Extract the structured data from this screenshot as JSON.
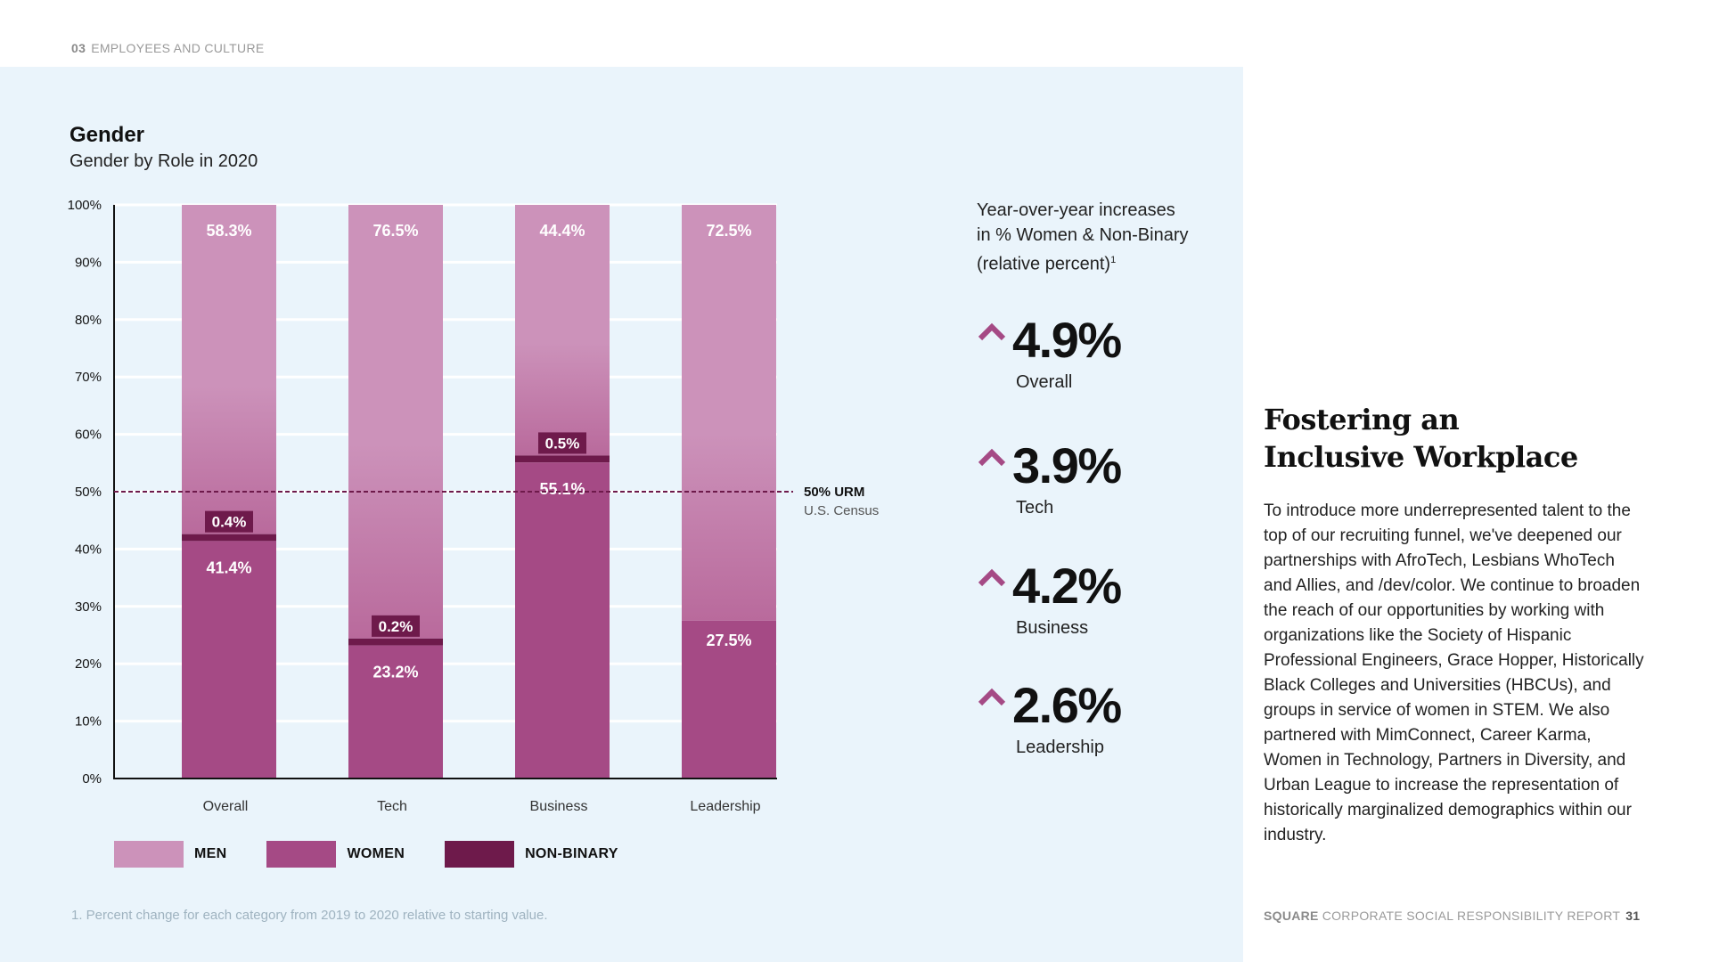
{
  "header": {
    "section_number": "03",
    "section_name": "EMPLOYEES AND CULTURE"
  },
  "chart": {
    "title": "Gender",
    "subtitle": "Gender by Role in 2020"
  },
  "chart_data": {
    "type": "bar",
    "stacked": true,
    "title": "Gender",
    "subtitle": "Gender by Role in 2020",
    "categories": [
      "Overall",
      "Tech",
      "Business",
      "Leadership"
    ],
    "series": [
      {
        "name": "WOMEN",
        "values": [
          41.4,
          23.2,
          55.1,
          27.5
        ],
        "color": "#a54a85"
      },
      {
        "name": "NON-BINARY",
        "values": [
          0.4,
          0.2,
          0.5,
          0.0
        ],
        "color": "#6e1a4b"
      },
      {
        "name": "MEN",
        "values": [
          58.3,
          76.5,
          44.4,
          72.5
        ],
        "color": "#cc92ba"
      }
    ],
    "data_labels": {
      "WOMEN": [
        "41.4%",
        "23.2%",
        "55.1%",
        "27.5%"
      ],
      "NON-BINARY": [
        "0.4%",
        "0.2%",
        "0.5%",
        null
      ],
      "MEN": [
        "58.3%",
        "76.5%",
        "44.4%",
        "72.5%"
      ]
    },
    "y_ticks": [
      "0%",
      "10%",
      "20%",
      "30%",
      "40%",
      "50%",
      "60%",
      "70%",
      "80%",
      "90%",
      "100%"
    ],
    "ylim": [
      0,
      100
    ],
    "grid": true,
    "reference_line": {
      "value": 50,
      "label": "50% URM",
      "sublabel": "U.S. Census",
      "color": "#6e1a4b"
    },
    "legend": {
      "position": "bottom-left"
    }
  },
  "legend": [
    {
      "label": "MEN",
      "color": "#cc92ba"
    },
    {
      "label": "WOMEN",
      "color": "#a54a85"
    },
    {
      "label": "NON-BINARY",
      "color": "#6e1a4b"
    }
  ],
  "footnote": "1. Percent change for each category from 2019 to 2020 relative to starting value.",
  "yoy": {
    "heading_line1": "Year-over-year increases",
    "heading_line2": "in % Women & Non-Binary",
    "heading_line3": "(relative percent)",
    "heading_sup": "1",
    "arrow_color": "#a54a85",
    "stats": [
      {
        "value": "4.9%",
        "label": "Overall"
      },
      {
        "value": "3.9%",
        "label": "Tech"
      },
      {
        "value": "4.2%",
        "label": "Business"
      },
      {
        "value": "2.6%",
        "label": "Leadership"
      }
    ]
  },
  "section": {
    "title_line1": "Fostering an",
    "title_line2": "Inclusive Workplace",
    "body": "To introduce more underrepresented talent to the top of our recruiting funnel, we've deepened our partnerships with AfroTech, Lesbians WhoTech and Allies, and /dev/color. We continue to broaden the reach of our opportunities by working with organizations like the Society of Hispanic Professional Engineers, Grace Hopper, Historically Black Colleges and Universities (HBCUs), and groups in service of women in STEM. We also partnered with MimConnect, Career Karma, Women in Technology, Partners in Diversity, and Urban League to increase the representation of historically marginalized demographics within our industry."
  },
  "footer": {
    "brand": "SQUARE",
    "report": "CORPORATE SOCIAL RESPONSIBILITY REPORT",
    "page": "31"
  }
}
